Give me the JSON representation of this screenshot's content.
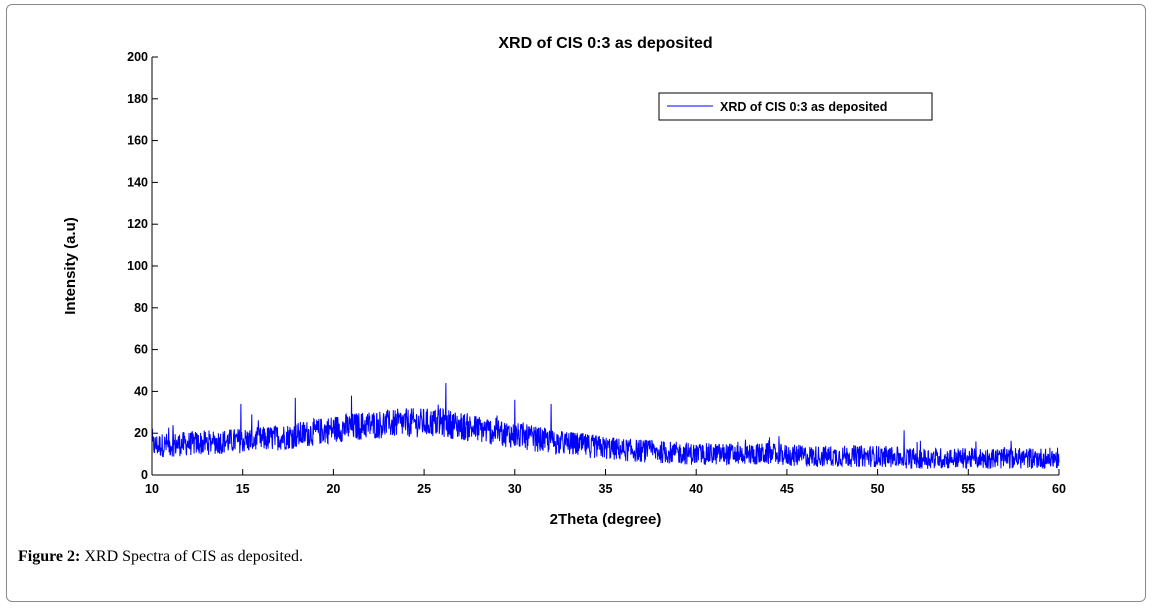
{
  "chart_data": {
    "type": "line",
    "title": "XRD of CIS 0:3 as deposited",
    "xlabel": "2Theta (degree)",
    "ylabel": "Intensity (a.u)",
    "xlim": [
      10,
      60
    ],
    "ylim": [
      0,
      200
    ],
    "xticks": [
      10,
      15,
      20,
      25,
      30,
      35,
      40,
      45,
      50,
      55,
      60
    ],
    "yticks": [
      0,
      20,
      40,
      60,
      80,
      100,
      120,
      140,
      160,
      180,
      200
    ],
    "grid": false,
    "legend_position": "top-right",
    "colors": {
      "series": "#0000ff",
      "axis": "#000000"
    },
    "series": [
      {
        "name": "XRD of CIS 0:3 as deposited",
        "step": 0.02,
        "noise_amplitude": 7,
        "x": [
          10,
          12,
          14,
          16,
          18,
          20,
          22,
          24,
          26,
          28,
          30,
          32,
          34,
          36,
          38,
          40,
          42,
          44,
          46,
          48,
          50,
          52,
          54,
          56,
          58,
          60
        ],
        "y": [
          14,
          15,
          16,
          17,
          19,
          22,
          24,
          25,
          25,
          22,
          19,
          16,
          14,
          12,
          11,
          10,
          10,
          10,
          9,
          9,
          9,
          8,
          8,
          8,
          8,
          8
        ],
        "peaks": [
          {
            "x": 26.2,
            "y": 44
          },
          {
            "x": 14.9,
            "y": 34
          },
          {
            "x": 30.0,
            "y": 36
          },
          {
            "x": 32.0,
            "y": 34
          },
          {
            "x": 21.0,
            "y": 38
          },
          {
            "x": 17.9,
            "y": 37
          }
        ]
      }
    ]
  },
  "caption": {
    "label": "Figure 2:",
    "text": " XRD Spectra of CIS as deposited."
  }
}
